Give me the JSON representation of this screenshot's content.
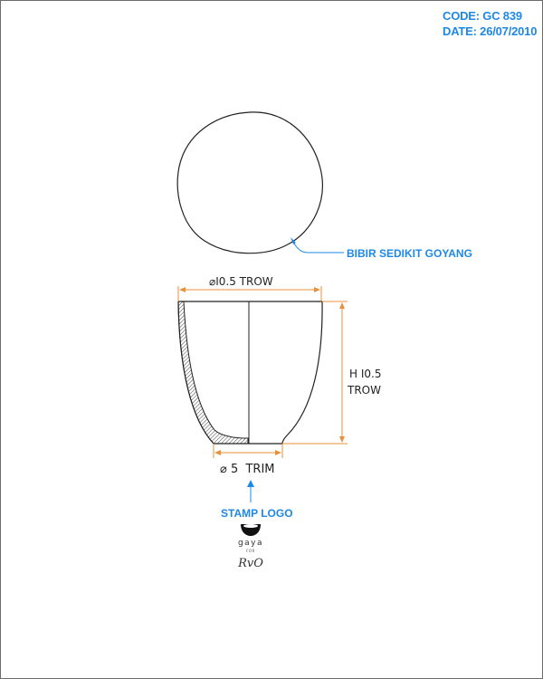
{
  "drawing_info": {
    "code": "CODE: GC 839",
    "date": "DATE: 26/07/2010"
  },
  "annotations": {
    "rim_note": "BIBIR SEDIKIT GOYANG",
    "stamp_note": "STAMP LOGO"
  },
  "dimensions": {
    "top_diameter": "⌀I0.5 TROW",
    "height_line1": "H I0.5",
    "height_line2": "TROW",
    "base_diameter": "⌀ 5  TRIM"
  },
  "logo": {
    "brand": "gaya",
    "for": "FOR",
    "client": "RvO"
  },
  "colors": {
    "accent_blue": "#1e88e5",
    "dimension_orange": "#e8913a",
    "outline": "#222222"
  }
}
